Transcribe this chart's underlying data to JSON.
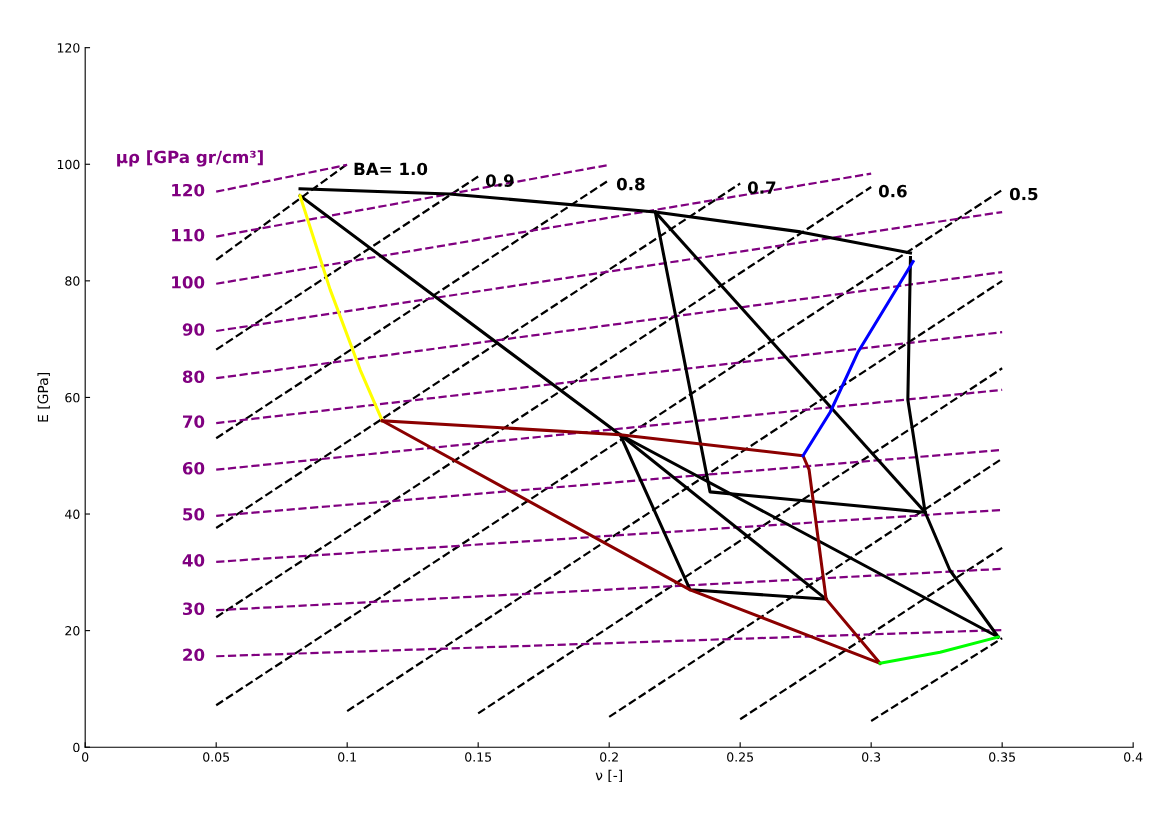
{
  "chart_data": {
    "type": "line",
    "xlabel": "ν [-]",
    "ylabel": "E [GPa]",
    "xlim": [
      0,
      0.4
    ],
    "ylim": [
      0,
      120
    ],
    "xticks": [
      0,
      0.05,
      0.1,
      0.15,
      0.2,
      0.25,
      0.3,
      0.35,
      0.4
    ],
    "yticks": [
      0,
      20,
      40,
      60,
      80,
      100,
      120
    ],
    "grid": false,
    "marker": "none",
    "series": [
      {
        "name": "BA= 1.0",
        "color": "#000000",
        "line_style": "dashed",
        "x": [
          0.05,
          0.0996
        ],
        "values": [
          83.6,
          99.9
        ]
      },
      {
        "name": "0.9",
        "color": "#000000",
        "line_style": "dashed",
        "x": [
          0.05,
          0.15
        ],
        "values": [
          68.2,
          97.9
        ]
      },
      {
        "name": "0.8",
        "color": "#000000",
        "line_style": "dashed",
        "x": [
          0.05,
          0.2
        ],
        "values": [
          53.0,
          97.3
        ]
      },
      {
        "name": "0.7",
        "color": "#000000",
        "line_style": "dashed",
        "x": [
          0.05,
          0.25
        ],
        "values": [
          37.6,
          96.7
        ]
      },
      {
        "name": "0.6",
        "color": "#000000",
        "line_style": "dashed",
        "x": [
          0.05,
          0.3
        ],
        "values": [
          22.3,
          96.1
        ]
      },
      {
        "name": "0.5",
        "color": "#000000",
        "line_style": "dashed",
        "x": [
          0.05,
          0.35
        ],
        "values": [
          7.2,
          95.6
        ]
      },
      {
        "color": "#000000",
        "line_style": "dashed",
        "x": [
          0.1,
          0.35
        ],
        "values": [
          6.2,
          80.0
        ]
      },
      {
        "color": "#000000",
        "line_style": "dashed",
        "x": [
          0.15,
          0.35
        ],
        "values": [
          5.8,
          65.0
        ]
      },
      {
        "color": "#000000",
        "line_style": "dashed",
        "x": [
          0.2,
          0.35
        ],
        "values": [
          5.2,
          49.5
        ]
      },
      {
        "color": "#000000",
        "line_style": "dashed",
        "x": [
          0.25,
          0.35
        ],
        "values": [
          4.8,
          34.2
        ]
      },
      {
        "color": "#000000",
        "line_style": "dashed",
        "x": [
          0.3,
          0.35
        ],
        "values": [
          4.5,
          18.7
        ]
      },
      {
        "name": "120",
        "color": "#800080",
        "line_style": "dashed",
        "x": [
          0.05,
          0.1
        ],
        "values": [
          95.3,
          99.9
        ]
      },
      {
        "name": "110",
        "color": "#800080",
        "line_style": "dashed",
        "x": [
          0.05,
          0.2
        ],
        "values": [
          87.6,
          99.9
        ]
      },
      {
        "name": "100",
        "color": "#800080",
        "line_style": "dashed",
        "x": [
          0.05,
          0.3
        ],
        "values": [
          79.5,
          98.4
        ]
      },
      {
        "name": "90",
        "color": "#800080",
        "line_style": "dashed",
        "x": [
          0.05,
          0.35
        ],
        "values": [
          71.4,
          91.8
        ]
      },
      {
        "name": "80",
        "color": "#800080",
        "line_style": "dashed",
        "x": [
          0.05,
          0.35
        ],
        "values": [
          63.3,
          81.5
        ]
      },
      {
        "name": "70",
        "color": "#800080",
        "line_style": "dashed",
        "x": [
          0.05,
          0.35
        ],
        "values": [
          55.6,
          71.2
        ]
      },
      {
        "name": "60",
        "color": "#800080",
        "line_style": "dashed",
        "x": [
          0.05,
          0.35
        ],
        "values": [
          47.6,
          61.3
        ]
      },
      {
        "name": "50",
        "color": "#800080",
        "line_style": "dashed",
        "x": [
          0.05,
          0.35
        ],
        "values": [
          39.7,
          51.0
        ]
      },
      {
        "name": "40",
        "color": "#800080",
        "line_style": "dashed",
        "x": [
          0.05,
          0.35
        ],
        "values": [
          31.8,
          40.7
        ]
      },
      {
        "name": "30",
        "color": "#800080",
        "line_style": "dashed",
        "x": [
          0.05,
          0.35
        ],
        "values": [
          23.5,
          30.6
        ]
      },
      {
        "name": "20",
        "color": "#800080",
        "line_style": "dashed",
        "x": [
          0.05,
          0.35
        ],
        "values": [
          15.6,
          20.1
        ]
      },
      {
        "color": "#000000",
        "x": [
          0.082,
          0.139,
          0.2176,
          0.273,
          0.315
        ],
        "values": [
          95.8,
          94.9,
          91.8,
          88.4,
          84.8
        ]
      },
      {
        "color": "#000000",
        "x": [
          0.082,
          0.2042,
          0.3485
        ],
        "values": [
          94.6,
          53.6,
          18.9
        ]
      },
      {
        "color": "#000000",
        "x": [
          0.315,
          0.314,
          0.3206,
          0.33,
          0.3485
        ],
        "values": [
          84.0,
          59.6,
          40.3,
          30.4,
          18.9
        ]
      },
      {
        "color": "#000000",
        "x": [
          0.2176,
          0.2385,
          0.3206
        ],
        "values": [
          91.8,
          43.8,
          40.3
        ]
      },
      {
        "color": "#000000",
        "x": [
          0.2176,
          0.3206
        ],
        "values": [
          91.8,
          40.3
        ]
      },
      {
        "color": "#000000",
        "x": [
          0.2042,
          0.2309,
          0.2828
        ],
        "values": [
          53.6,
          27.0,
          25.4
        ]
      },
      {
        "color": "#000000",
        "x": [
          0.2042,
          0.2828
        ],
        "values": [
          53.6,
          25.4
        ]
      },
      {
        "color": "#ffff00",
        "x": [
          0.082,
          0.0935,
          0.105,
          0.1134
        ],
        "values": [
          94.6,
          78.5,
          64.7,
          56.0
        ]
      },
      {
        "color": "#8b0000",
        "x": [
          0.1134,
          0.2042,
          0.274,
          0.2763,
          0.2828,
          0.3034
        ],
        "values": [
          56.0,
          53.6,
          50.0,
          47.6,
          25.4,
          14.4
        ]
      },
      {
        "color": "#8b0000",
        "x": [
          0.1134,
          0.2309,
          0.3034
        ],
        "values": [
          56.0,
          27.0,
          14.4
        ]
      },
      {
        "color": "#0000ff",
        "x": [
          0.274,
          0.2844,
          0.295,
          0.316
        ],
        "values": [
          50.0,
          57.5,
          67.8,
          83.3
        ]
      },
      {
        "color": "#00ff00",
        "x": [
          0.3034,
          0.3263,
          0.3485
        ],
        "values": [
          14.4,
          16.3,
          18.9
        ]
      }
    ],
    "annotations": [
      "μρ [GPa gr/cm³]"
    ]
  }
}
